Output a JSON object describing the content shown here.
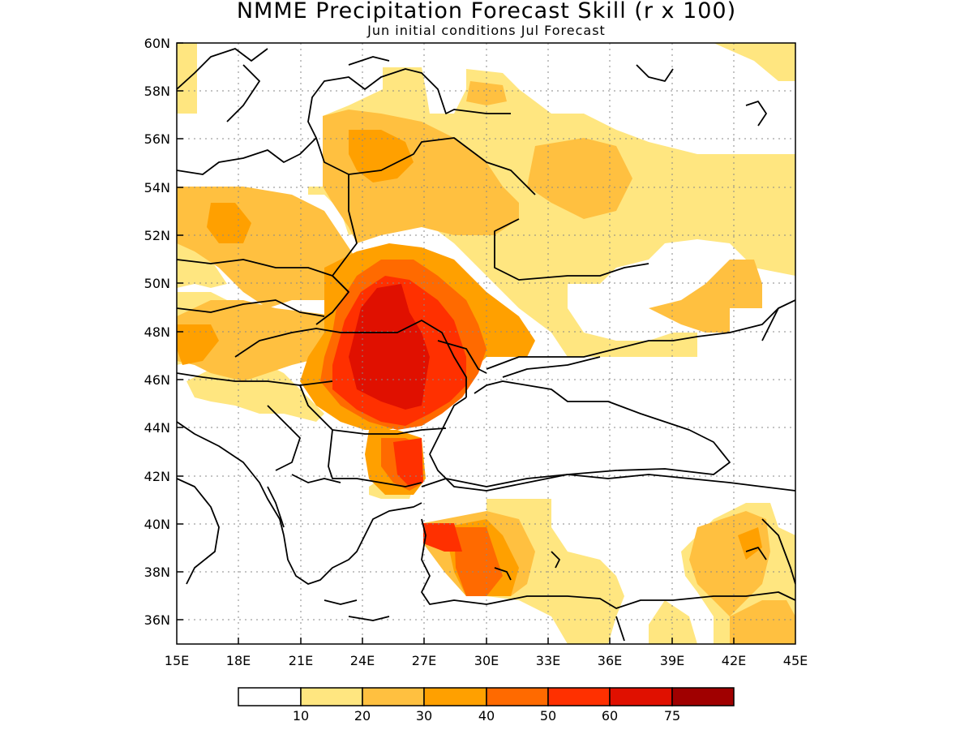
{
  "title": "NMME Precipitation Forecast Skill (r x 100)",
  "subtitle": "Jun initial conditions  Jul Forecast",
  "map": {
    "lon_range": [
      15,
      45
    ],
    "lat_range": [
      35,
      60
    ],
    "grid": true,
    "lat_ticks": [
      "60N",
      "58N",
      "56N",
      "54N",
      "52N",
      "50N",
      "48N",
      "46N",
      "44N",
      "42N",
      "40N",
      "38N",
      "36N"
    ],
    "lon_ticks": [
      "15E",
      "18E",
      "21E",
      "24E",
      "27E",
      "30E",
      "33E",
      "36E",
      "39E",
      "42E",
      "45E"
    ]
  },
  "colorbar": {
    "colors": [
      "#ffffff",
      "#ffe680",
      "#ffc040",
      "#ffa000",
      "#ff6a00",
      "#ff3000",
      "#e01000",
      "#a00000"
    ],
    "labels": [
      "10",
      "20",
      "30",
      "40",
      "50",
      "60",
      "75"
    ]
  }
}
